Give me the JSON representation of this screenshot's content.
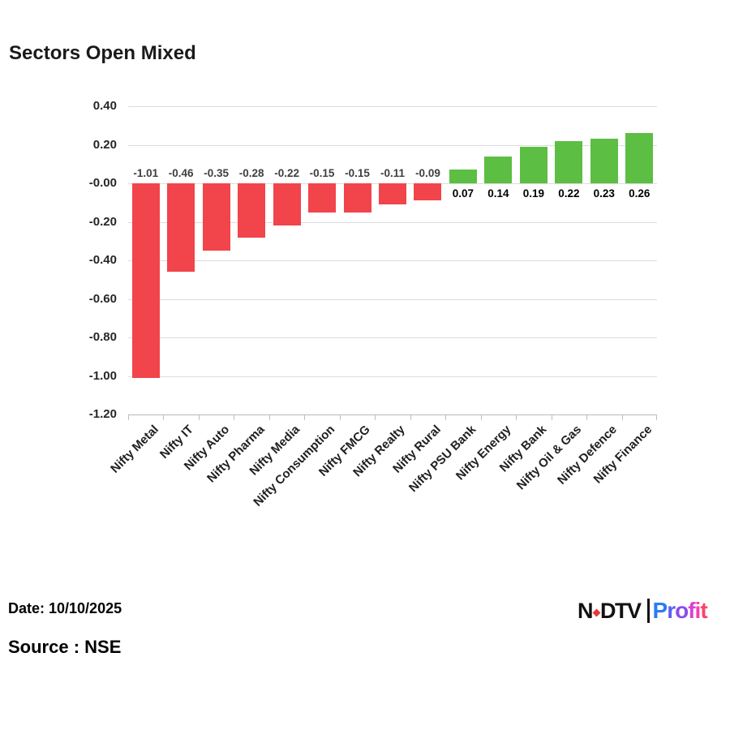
{
  "title": "Sectors Open Mixed",
  "chart_data": {
    "type": "bar",
    "title": "Sectors Open Mixed",
    "categories": [
      "Nifty Metal",
      "Nifty IT",
      "Nifty Auto",
      "Nifty Pharma",
      "Nifty Media",
      "Nifty Consumption",
      "Nifty FMCG",
      "Nifty Realty",
      "Nifty Rural",
      "Nifty PSU Bank",
      "Nifty Energy",
      "Nifty Bank",
      "Nifty Oil & Gas",
      "Nifty Defence",
      "Nifty Finance"
    ],
    "values": [
      -1.01,
      -0.46,
      -0.35,
      -0.28,
      -0.22,
      -0.15,
      -0.15,
      -0.11,
      -0.09,
      0.07,
      0.14,
      0.19,
      0.22,
      0.23,
      0.26
    ],
    "value_labels": [
      "-1.01",
      "-0.46",
      "-0.35",
      "-0.28",
      "-0.22",
      "-0.15",
      "-0.15",
      "-0.11",
      "-0.09",
      "0.07",
      "0.14",
      "0.19",
      "0.22",
      "0.23",
      "0.26"
    ],
    "xlabel": "",
    "ylabel": "",
    "ylim": [
      -1.2,
      0.4
    ],
    "ytick_labels": [
      "0.40",
      "0.20",
      "-0.00",
      "-0.20",
      "-0.40",
      "-0.60",
      "-0.80",
      "-1.00",
      "-1.20"
    ],
    "grid": true,
    "legend": false,
    "bar_color_negative": "#f2444b",
    "bar_color_positive": "#5cbe42",
    "value_label_color_negative": "#3f3f3f",
    "value_label_color_positive": "#000000"
  },
  "footer": {
    "date": "Date: 10/10/2025",
    "source": "Source : NSE"
  },
  "logo": {
    "ndtv_n": "N",
    "ndtv_dtv": "DTV",
    "profit": "Profit",
    "dot_color": "#e8373d",
    "profit_letter_colors": [
      "#2a7df2",
      "#5b5ff2",
      "#8a4ced",
      "#d93fd4",
      "#f73dae",
      "#fb4467"
    ]
  },
  "colors": {
    "gridline": "#dcdcdc",
    "axis_line": "#b9b9b9",
    "ytick_text": "#262626",
    "xtick_text": "#1f1f1f",
    "title_text": "#1a1a1a"
  }
}
